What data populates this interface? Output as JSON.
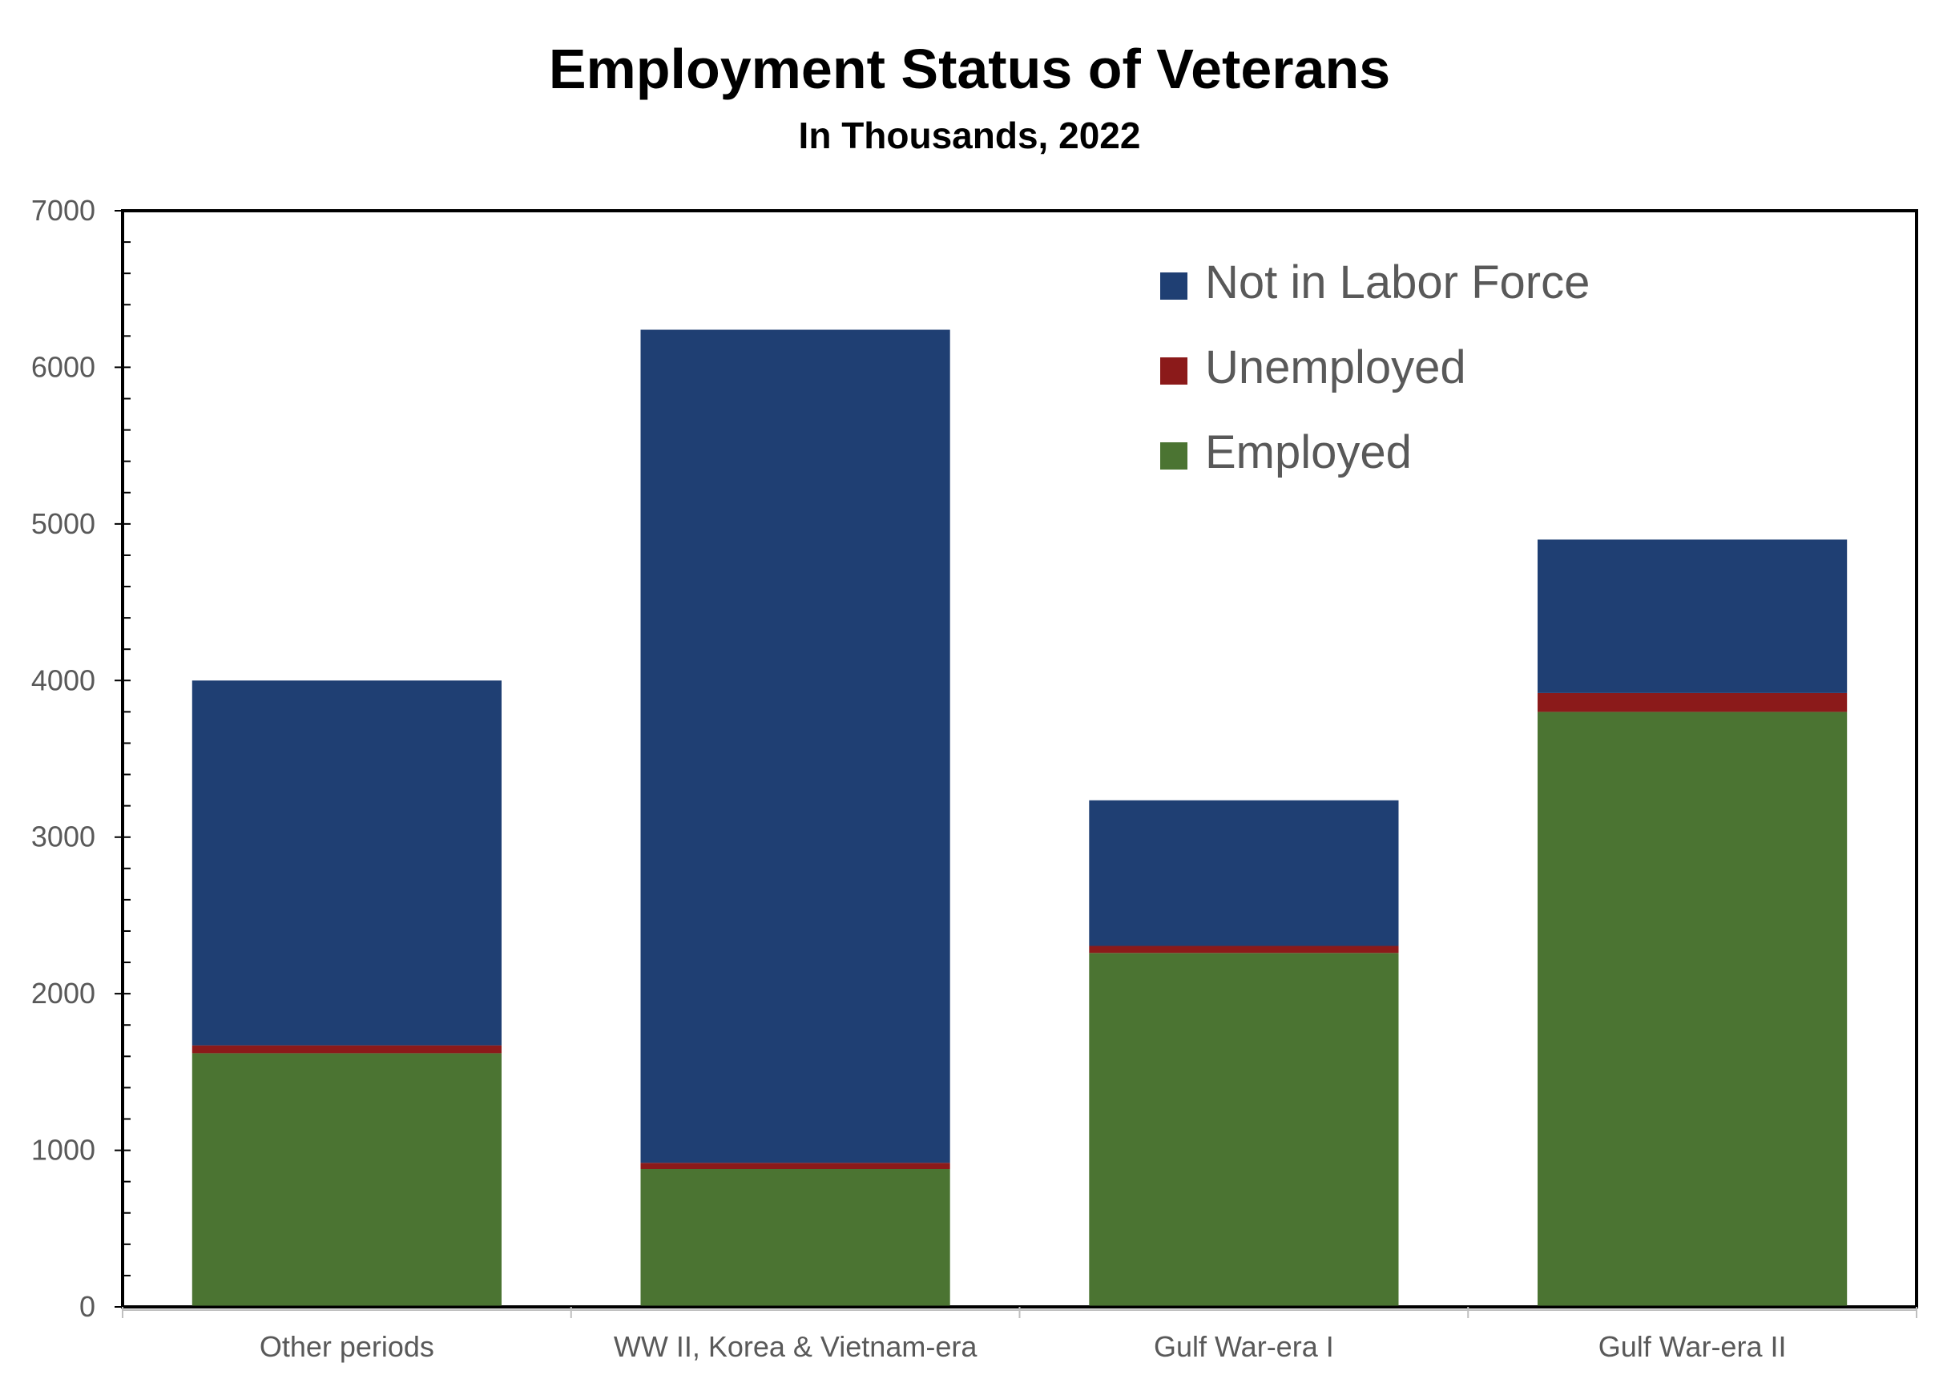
{
  "chart_data": {
    "type": "bar",
    "stacked": true,
    "title": "Employment Status of Veterans",
    "subtitle": "In Thousands, 2022",
    "xlabel": "",
    "ylabel": "",
    "ylim": [
      0,
      7000
    ],
    "yticks": [
      0,
      1000,
      2000,
      3000,
      4000,
      5000,
      6000,
      7000
    ],
    "categories": [
      "Other periods",
      "WW II, Korea & Vietnam-era",
      "Gulf War-era I",
      "Gulf War-era II"
    ],
    "series": [
      {
        "name": "Employed",
        "color": "#4B7432",
        "values": [
          1620,
          880,
          2260,
          3800
        ]
      },
      {
        "name": "Unemployed",
        "color": "#8B1A1A",
        "values": [
          50,
          40,
          45,
          120
        ]
      },
      {
        "name": "Not in Labor Force",
        "color": "#1F3F73",
        "values": [
          2330,
          5320,
          930,
          980
        ]
      }
    ],
    "legend": {
      "position": "top-right",
      "order": [
        "Not in Labor Force",
        "Unemployed",
        "Employed"
      ]
    },
    "grid": false
  }
}
